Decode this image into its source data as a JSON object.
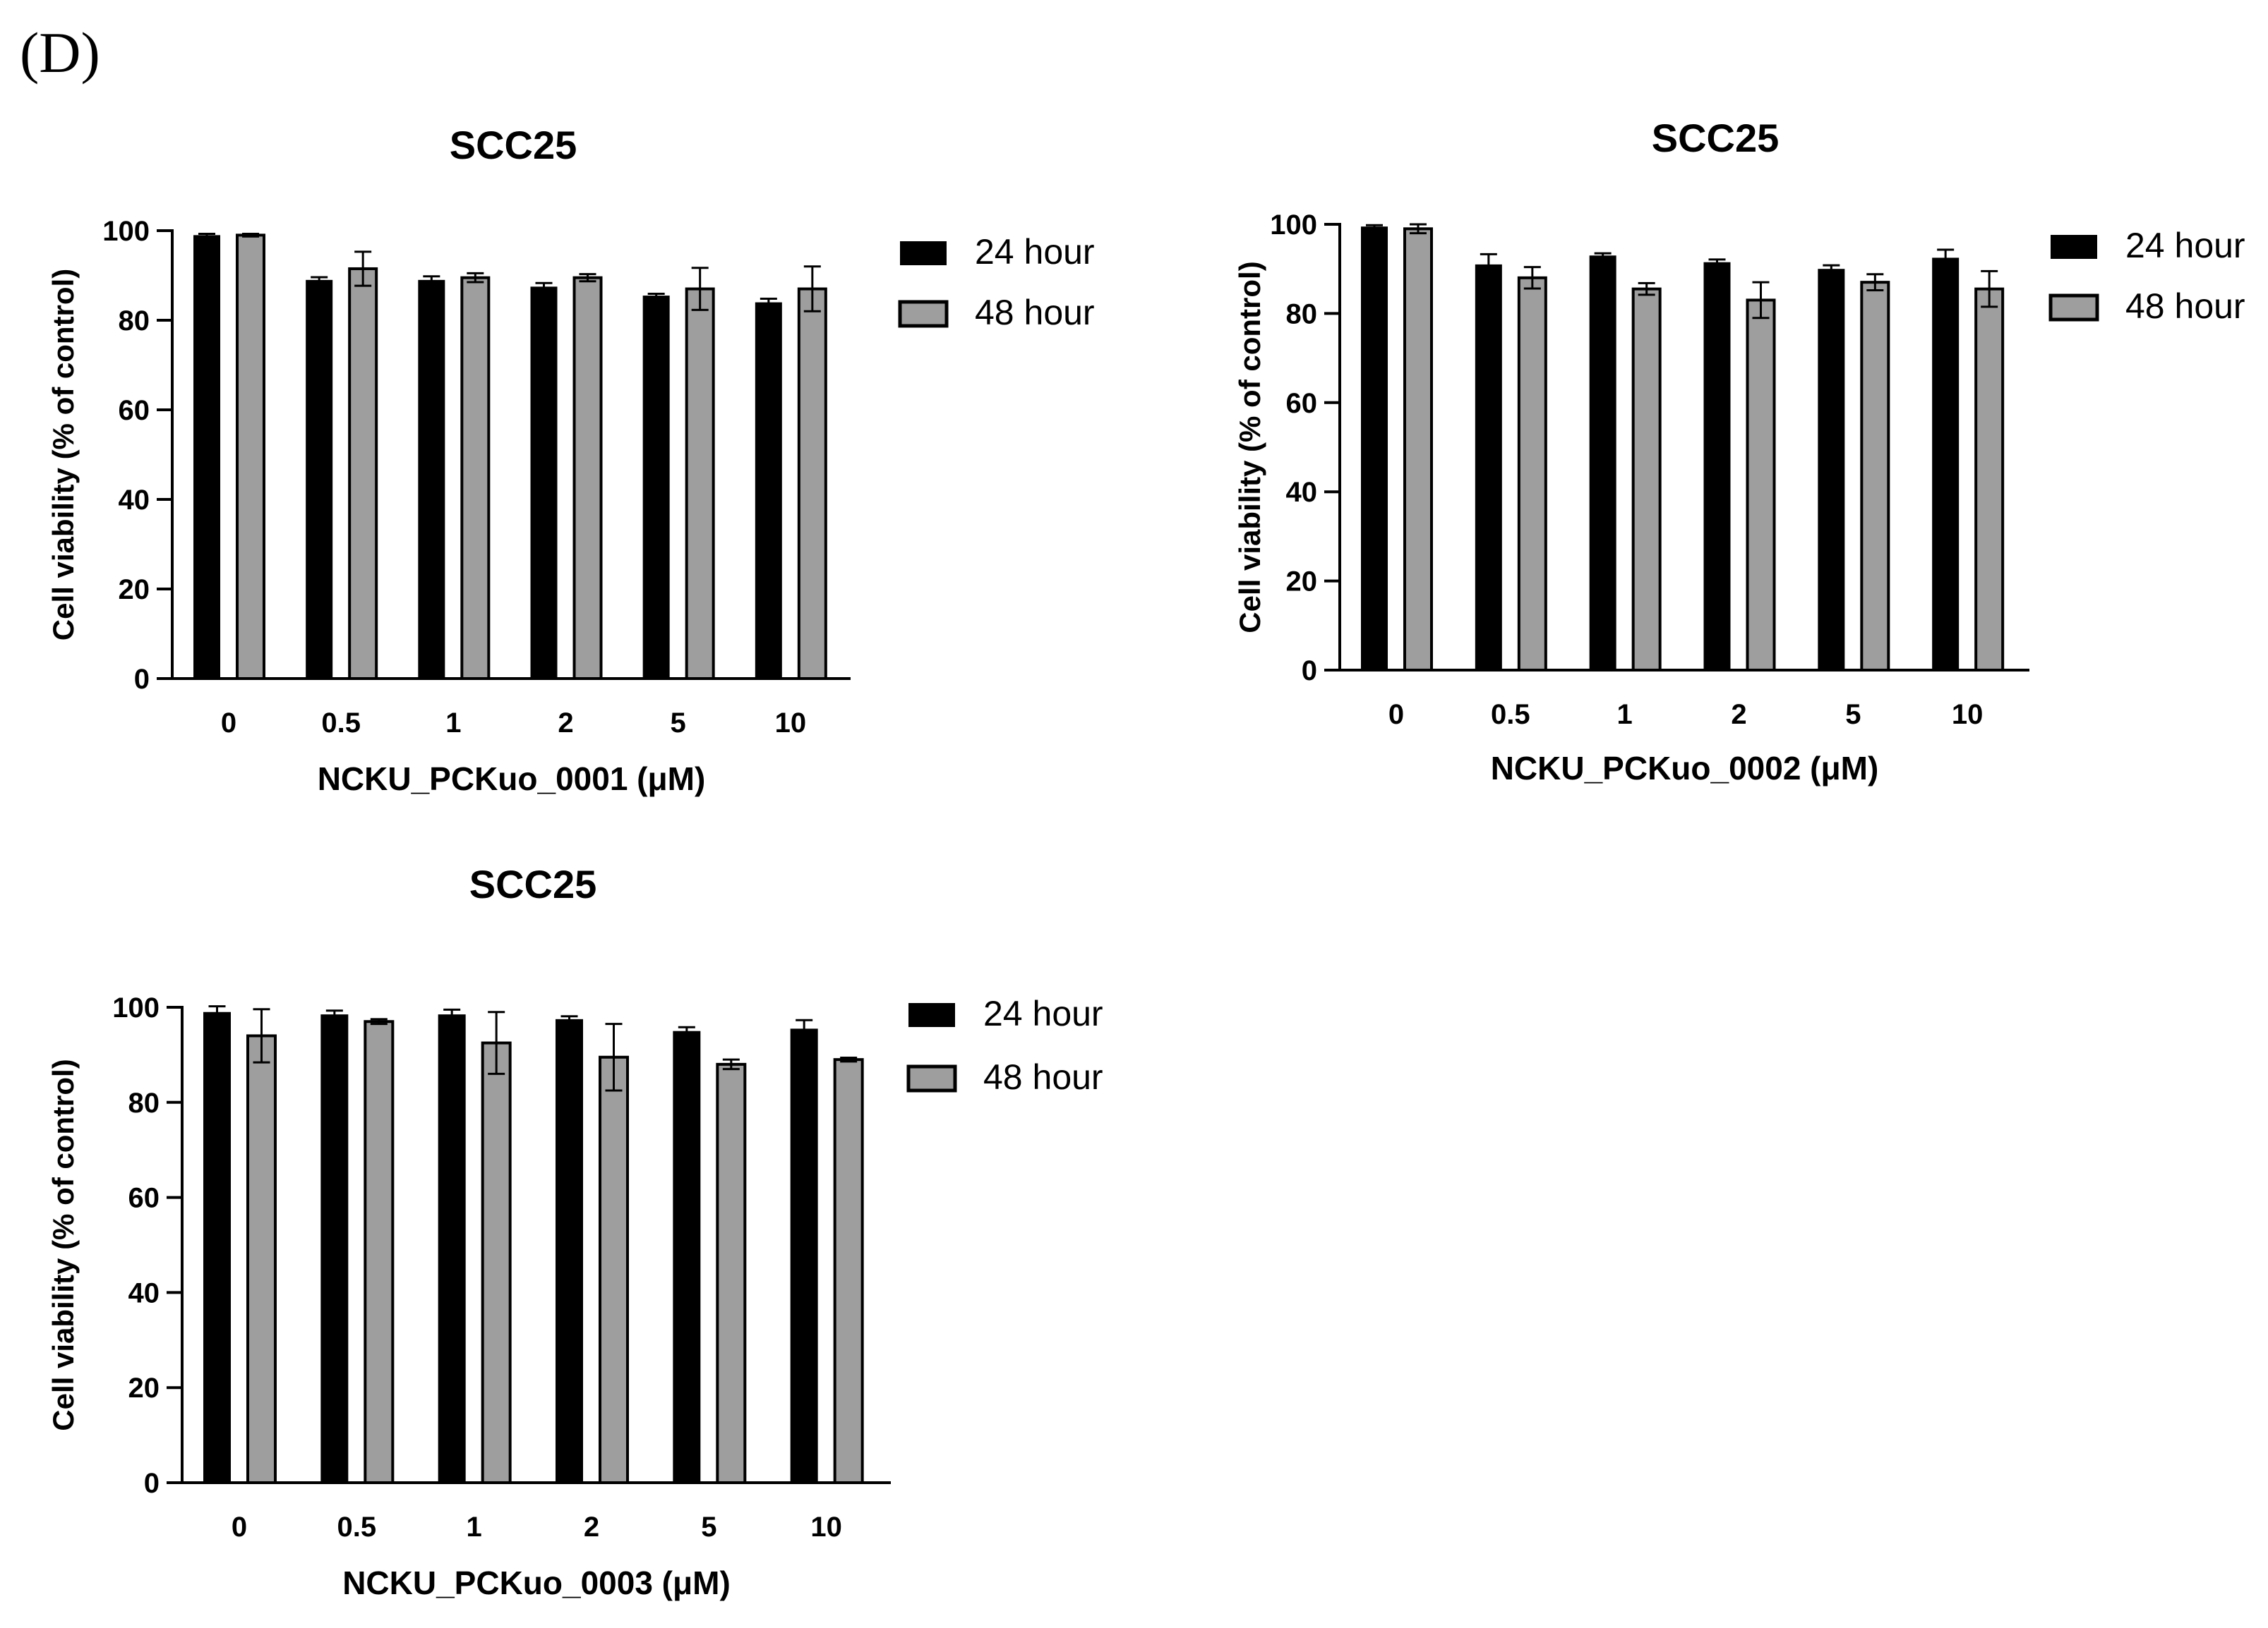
{
  "figure": {
    "panel_label": "(D)"
  },
  "chart_data": [
    {
      "type": "bar",
      "title": "SCC25",
      "xlabel": "NCKU_PCKuo_0001 (μM)",
      "ylabel": "Cell viability (% of control)",
      "ylim": [
        0,
        100
      ],
      "yticks": [
        "0",
        "20",
        "40",
        "60",
        "80",
        "100"
      ],
      "categories": [
        "0",
        "0.5",
        "1",
        "2",
        "5",
        "10"
      ],
      "legend_position": "right",
      "series": [
        {
          "name": "24 hour",
          "color": "#000000",
          "values": [
            99,
            89,
            89,
            87.5,
            85.5,
            84
          ],
          "errors": [
            0.3,
            0.6,
            0.8,
            0.8,
            0.4,
            0.8
          ]
        },
        {
          "name": "48 hour",
          "color": "#9e9e9e",
          "values": [
            99,
            91.5,
            89.5,
            89.5,
            87,
            87
          ],
          "errors": [
            0.3,
            3.8,
            1,
            0.8,
            4.7,
            5
          ]
        }
      ]
    },
    {
      "type": "bar",
      "title": "SCC25",
      "xlabel": "NCKU_PCKuo_0002 (μM)",
      "ylabel": "Cell viability (% of control)",
      "ylim": [
        0,
        100
      ],
      "yticks": [
        "0",
        "20",
        "40",
        "60",
        "80",
        "100"
      ],
      "categories": [
        "0",
        "0.5",
        "1",
        "2",
        "5",
        "10"
      ],
      "legend_position": "right",
      "series": [
        {
          "name": "24 hour",
          "color": "#000000",
          "values": [
            99.5,
            91,
            93,
            91.5,
            90,
            92.5
          ],
          "errors": [
            0.3,
            2.3,
            0.5,
            0.6,
            0.8,
            1.8
          ]
        },
        {
          "name": "48 hour",
          "color": "#9e9e9e",
          "values": [
            99,
            88,
            85.5,
            83,
            87,
            85.5
          ],
          "errors": [
            1,
            2.4,
            1.3,
            4,
            1.8,
            4
          ]
        }
      ]
    },
    {
      "type": "bar",
      "title": "SCC25",
      "xlabel": "NCKU_PCKuo_0003 (μM)",
      "ylabel": "Cell viability (% of control)",
      "ylim": [
        0,
        100
      ],
      "yticks": [
        "0",
        "20",
        "40",
        "60",
        "80",
        "100"
      ],
      "categories": [
        "0",
        "0.5",
        "1",
        "2",
        "5",
        "10"
      ],
      "legend_position": "right",
      "series": [
        {
          "name": "24 hour",
          "color": "#000000",
          "values": [
            99,
            98.5,
            98.5,
            97.5,
            95,
            95.5
          ],
          "errors": [
            1.2,
            0.8,
            1,
            0.6,
            0.8,
            1.8
          ]
        },
        {
          "name": "48 hour",
          "color": "#9e9e9e",
          "values": [
            94,
            97,
            92.5,
            89.5,
            88,
            89
          ],
          "errors": [
            5.6,
            0.5,
            6.5,
            7,
            1,
            0.4
          ]
        }
      ]
    }
  ]
}
